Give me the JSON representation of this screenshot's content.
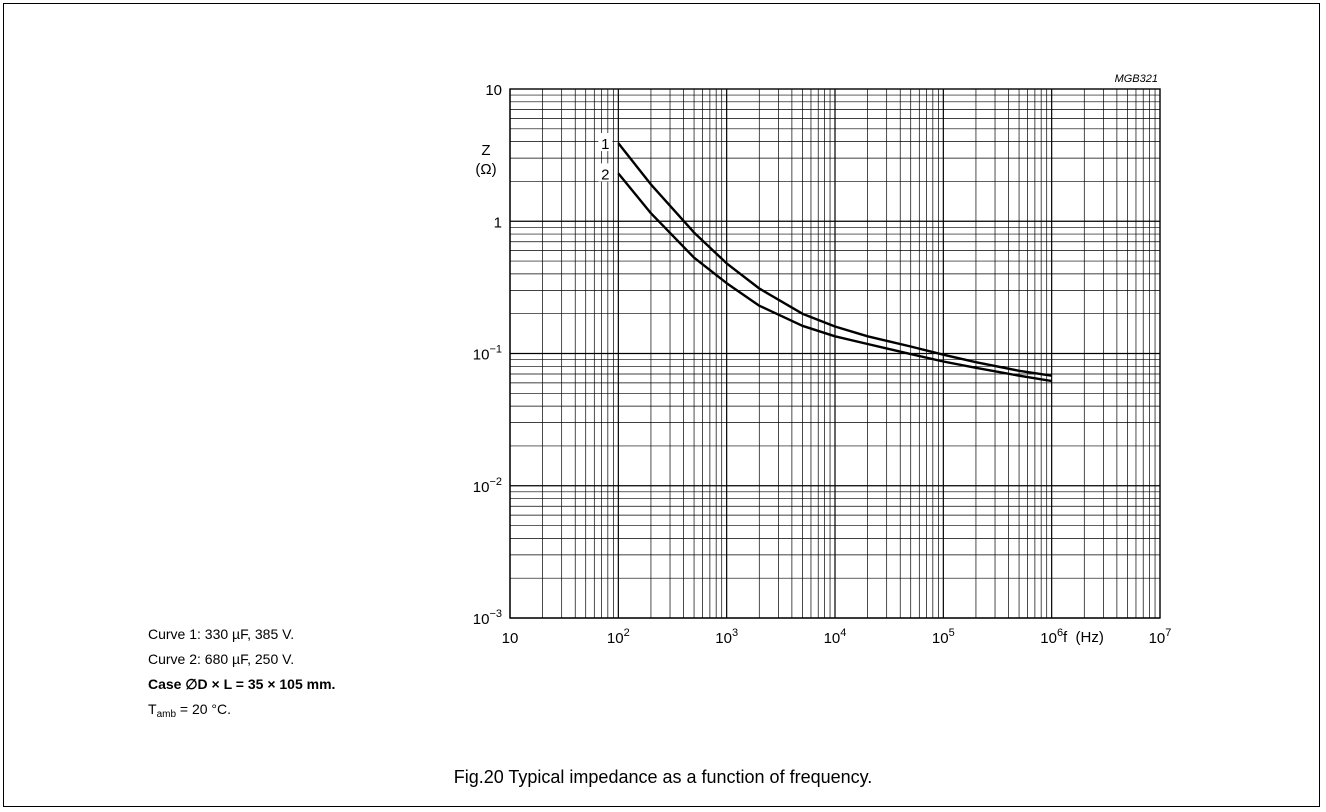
{
  "figure": {
    "code": "MGB321",
    "caption": "Fig.20  Typical impedance as a function of frequency."
  },
  "notes": {
    "curve1": "Curve 1: 330 µF, 385 V.",
    "curve2": "Curve 2: 680 µF, 250 V.",
    "case": "Case ∅D × L = 35 × 105 mm.",
    "tamb_symbol": "T",
    "tamb_sub": "amb",
    "tamb_value": " = 20 °C."
  },
  "chart_data": {
    "type": "line",
    "x_scale": "log",
    "y_scale": "log",
    "xlim": [
      10,
      10000000
    ],
    "ylim": [
      0.001,
      10
    ],
    "xlabel": "f  (Hz)",
    "ylabel": "Z",
    "ylabel_unit": "(Ω)",
    "x_ticks": [
      {
        "value": 10,
        "base": "10",
        "exp": ""
      },
      {
        "value": 100,
        "base": "10",
        "exp": "2"
      },
      {
        "value": 1000,
        "base": "10",
        "exp": "3"
      },
      {
        "value": 10000,
        "base": "10",
        "exp": "4"
      },
      {
        "value": 100000,
        "base": "10",
        "exp": "5"
      },
      {
        "value": 1000000,
        "base": "10",
        "exp": "6"
      },
      {
        "value": 10000000,
        "base": "10",
        "exp": "7"
      }
    ],
    "y_ticks": [
      {
        "value": 10,
        "base": "10",
        "exp": ""
      },
      {
        "value": 1,
        "base": "1",
        "exp": ""
      },
      {
        "value": 0.1,
        "base": "10",
        "exp": "−1"
      },
      {
        "value": 0.01,
        "base": "10",
        "exp": "−2"
      },
      {
        "value": 0.001,
        "base": "10",
        "exp": "−3"
      }
    ],
    "grid": true,
    "series": [
      {
        "name": "1",
        "x": [
          100,
          200,
          500,
          1000,
          2000,
          5000,
          10000,
          20000,
          50000,
          100000,
          200000,
          500000,
          1000000
        ],
        "y": [
          3.9,
          1.9,
          0.82,
          0.48,
          0.31,
          0.2,
          0.16,
          0.135,
          0.113,
          0.098,
          0.086,
          0.074,
          0.068
        ]
      },
      {
        "name": "2",
        "x": [
          100,
          200,
          500,
          1000,
          2000,
          5000,
          10000,
          20000,
          50000,
          100000,
          200000,
          500000,
          1000000
        ],
        "y": [
          2.3,
          1.15,
          0.53,
          0.34,
          0.23,
          0.162,
          0.135,
          0.118,
          0.099,
          0.087,
          0.078,
          0.068,
          0.062
        ]
      }
    ]
  }
}
